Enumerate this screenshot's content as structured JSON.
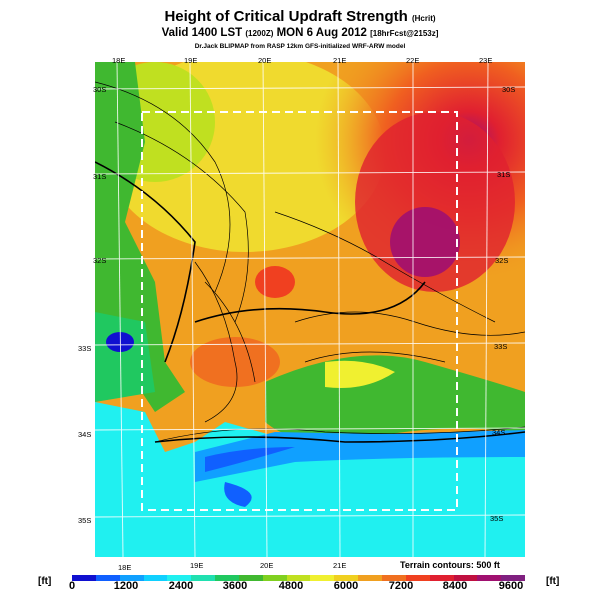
{
  "header": {
    "title": "Height of Critical Updraft Strength",
    "title_unit": "(Hcrit)",
    "valid_line": "Valid 1400 LST",
    "valid_code": "(1200Z)",
    "valid_date": "MON 6 Aug 2012",
    "forecast": "[18hrFcst@2153z]",
    "credit": "Dr.Jack BLIPMAP from RASP 12km GFS-initialized WRF-ARW model"
  },
  "map": {
    "lon_labels_top": [
      "18E",
      "19E",
      "20E",
      "21E",
      "22E",
      "23E"
    ],
    "lon_labels_bottom": [
      "18E",
      "19E",
      "20E",
      "21E"
    ],
    "lat_labels_left": [
      "30S",
      "31S",
      "32S",
      "33S",
      "34S",
      "35S"
    ],
    "lat_labels_right": [
      "30S",
      "31S",
      "32S",
      "33S",
      "34S",
      "35S"
    ],
    "terrain_note": "Terrain contours: 500 ft"
  },
  "colorbar": {
    "unit_left": "[ft]",
    "unit_right": "[ft]",
    "ticks": [
      "0",
      "1200",
      "2400",
      "3600",
      "4800",
      "6000",
      "7200",
      "8400",
      "9600"
    ],
    "colors": [
      "#1010d0",
      "#1060ff",
      "#10a0ff",
      "#10d0ff",
      "#20f0f0",
      "#20e0b0",
      "#20c860",
      "#40b830",
      "#80d020",
      "#c0e020",
      "#f0f030",
      "#f0d020",
      "#f0a020",
      "#f07020",
      "#f04020",
      "#e02030",
      "#c01040",
      "#a01070",
      "#802080"
    ]
  }
}
